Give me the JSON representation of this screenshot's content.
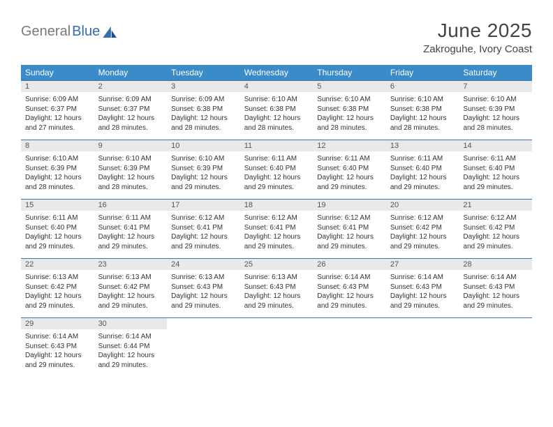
{
  "logo": {
    "text1": "General",
    "text2": "Blue"
  },
  "title": "June 2025",
  "subtitle": "Zakroguhe, Ivory Coast",
  "colors": {
    "header_bg": "#3b8bc9",
    "header_text": "#ffffff",
    "daynum_bg": "#e9e9e9",
    "week_border": "#3b74a8",
    "logo_gray": "#7a7a7a",
    "logo_blue": "#2f6fb0"
  },
  "weekdays": [
    "Sunday",
    "Monday",
    "Tuesday",
    "Wednesday",
    "Thursday",
    "Friday",
    "Saturday"
  ],
  "weeks": [
    [
      {
        "num": "1",
        "sunrise": "Sunrise: 6:09 AM",
        "sunset": "Sunset: 6:37 PM",
        "day1": "Daylight: 12 hours",
        "day2": "and 27 minutes."
      },
      {
        "num": "2",
        "sunrise": "Sunrise: 6:09 AM",
        "sunset": "Sunset: 6:37 PM",
        "day1": "Daylight: 12 hours",
        "day2": "and 28 minutes."
      },
      {
        "num": "3",
        "sunrise": "Sunrise: 6:09 AM",
        "sunset": "Sunset: 6:38 PM",
        "day1": "Daylight: 12 hours",
        "day2": "and 28 minutes."
      },
      {
        "num": "4",
        "sunrise": "Sunrise: 6:10 AM",
        "sunset": "Sunset: 6:38 PM",
        "day1": "Daylight: 12 hours",
        "day2": "and 28 minutes."
      },
      {
        "num": "5",
        "sunrise": "Sunrise: 6:10 AM",
        "sunset": "Sunset: 6:38 PM",
        "day1": "Daylight: 12 hours",
        "day2": "and 28 minutes."
      },
      {
        "num": "6",
        "sunrise": "Sunrise: 6:10 AM",
        "sunset": "Sunset: 6:38 PM",
        "day1": "Daylight: 12 hours",
        "day2": "and 28 minutes."
      },
      {
        "num": "7",
        "sunrise": "Sunrise: 6:10 AM",
        "sunset": "Sunset: 6:39 PM",
        "day1": "Daylight: 12 hours",
        "day2": "and 28 minutes."
      }
    ],
    [
      {
        "num": "8",
        "sunrise": "Sunrise: 6:10 AM",
        "sunset": "Sunset: 6:39 PM",
        "day1": "Daylight: 12 hours",
        "day2": "and 28 minutes."
      },
      {
        "num": "9",
        "sunrise": "Sunrise: 6:10 AM",
        "sunset": "Sunset: 6:39 PM",
        "day1": "Daylight: 12 hours",
        "day2": "and 28 minutes."
      },
      {
        "num": "10",
        "sunrise": "Sunrise: 6:10 AM",
        "sunset": "Sunset: 6:39 PM",
        "day1": "Daylight: 12 hours",
        "day2": "and 29 minutes."
      },
      {
        "num": "11",
        "sunrise": "Sunrise: 6:11 AM",
        "sunset": "Sunset: 6:40 PM",
        "day1": "Daylight: 12 hours",
        "day2": "and 29 minutes."
      },
      {
        "num": "12",
        "sunrise": "Sunrise: 6:11 AM",
        "sunset": "Sunset: 6:40 PM",
        "day1": "Daylight: 12 hours",
        "day2": "and 29 minutes."
      },
      {
        "num": "13",
        "sunrise": "Sunrise: 6:11 AM",
        "sunset": "Sunset: 6:40 PM",
        "day1": "Daylight: 12 hours",
        "day2": "and 29 minutes."
      },
      {
        "num": "14",
        "sunrise": "Sunrise: 6:11 AM",
        "sunset": "Sunset: 6:40 PM",
        "day1": "Daylight: 12 hours",
        "day2": "and 29 minutes."
      }
    ],
    [
      {
        "num": "15",
        "sunrise": "Sunrise: 6:11 AM",
        "sunset": "Sunset: 6:40 PM",
        "day1": "Daylight: 12 hours",
        "day2": "and 29 minutes."
      },
      {
        "num": "16",
        "sunrise": "Sunrise: 6:11 AM",
        "sunset": "Sunset: 6:41 PM",
        "day1": "Daylight: 12 hours",
        "day2": "and 29 minutes."
      },
      {
        "num": "17",
        "sunrise": "Sunrise: 6:12 AM",
        "sunset": "Sunset: 6:41 PM",
        "day1": "Daylight: 12 hours",
        "day2": "and 29 minutes."
      },
      {
        "num": "18",
        "sunrise": "Sunrise: 6:12 AM",
        "sunset": "Sunset: 6:41 PM",
        "day1": "Daylight: 12 hours",
        "day2": "and 29 minutes."
      },
      {
        "num": "19",
        "sunrise": "Sunrise: 6:12 AM",
        "sunset": "Sunset: 6:41 PM",
        "day1": "Daylight: 12 hours",
        "day2": "and 29 minutes."
      },
      {
        "num": "20",
        "sunrise": "Sunrise: 6:12 AM",
        "sunset": "Sunset: 6:42 PM",
        "day1": "Daylight: 12 hours",
        "day2": "and 29 minutes."
      },
      {
        "num": "21",
        "sunrise": "Sunrise: 6:12 AM",
        "sunset": "Sunset: 6:42 PM",
        "day1": "Daylight: 12 hours",
        "day2": "and 29 minutes."
      }
    ],
    [
      {
        "num": "22",
        "sunrise": "Sunrise: 6:13 AM",
        "sunset": "Sunset: 6:42 PM",
        "day1": "Daylight: 12 hours",
        "day2": "and 29 minutes."
      },
      {
        "num": "23",
        "sunrise": "Sunrise: 6:13 AM",
        "sunset": "Sunset: 6:42 PM",
        "day1": "Daylight: 12 hours",
        "day2": "and 29 minutes."
      },
      {
        "num": "24",
        "sunrise": "Sunrise: 6:13 AM",
        "sunset": "Sunset: 6:43 PM",
        "day1": "Daylight: 12 hours",
        "day2": "and 29 minutes."
      },
      {
        "num": "25",
        "sunrise": "Sunrise: 6:13 AM",
        "sunset": "Sunset: 6:43 PM",
        "day1": "Daylight: 12 hours",
        "day2": "and 29 minutes."
      },
      {
        "num": "26",
        "sunrise": "Sunrise: 6:14 AM",
        "sunset": "Sunset: 6:43 PM",
        "day1": "Daylight: 12 hours",
        "day2": "and 29 minutes."
      },
      {
        "num": "27",
        "sunrise": "Sunrise: 6:14 AM",
        "sunset": "Sunset: 6:43 PM",
        "day1": "Daylight: 12 hours",
        "day2": "and 29 minutes."
      },
      {
        "num": "28",
        "sunrise": "Sunrise: 6:14 AM",
        "sunset": "Sunset: 6:43 PM",
        "day1": "Daylight: 12 hours",
        "day2": "and 29 minutes."
      }
    ],
    [
      {
        "num": "29",
        "sunrise": "Sunrise: 6:14 AM",
        "sunset": "Sunset: 6:43 PM",
        "day1": "Daylight: 12 hours",
        "day2": "and 29 minutes."
      },
      {
        "num": "30",
        "sunrise": "Sunrise: 6:14 AM",
        "sunset": "Sunset: 6:44 PM",
        "day1": "Daylight: 12 hours",
        "day2": "and 29 minutes."
      },
      null,
      null,
      null,
      null,
      null
    ]
  ]
}
